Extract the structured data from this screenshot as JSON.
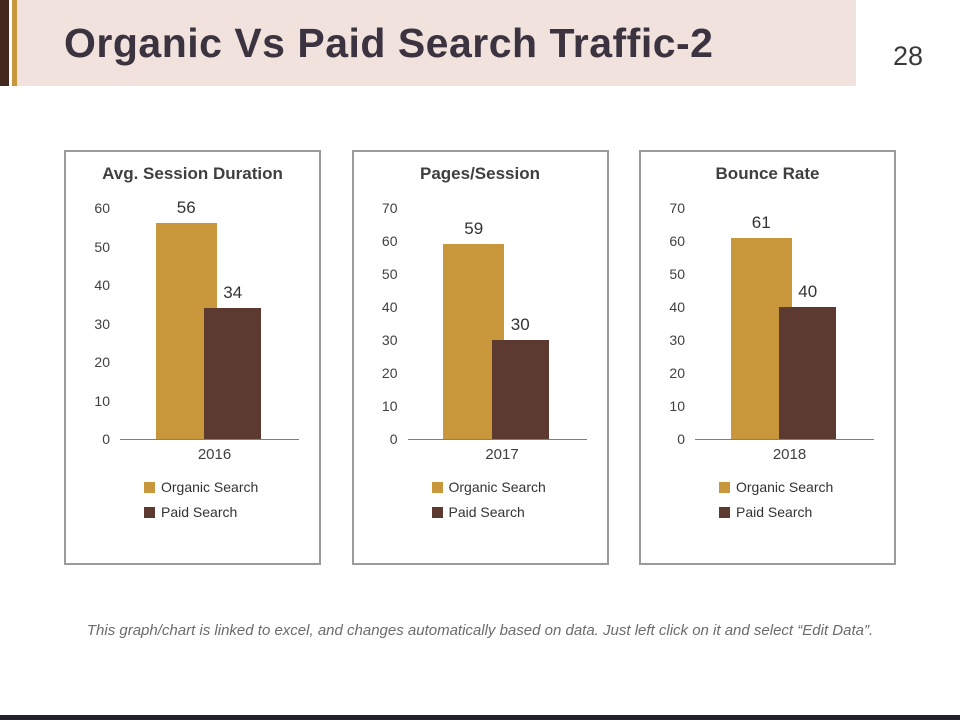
{
  "page": {
    "title": "Organic Vs Paid Search Traffic-2",
    "page_number": "28",
    "footer": "This graph/chart is linked to excel, and changes automatically based on data. Just left click on it and select “Edit Data”."
  },
  "colors": {
    "organic": "#C9973B",
    "paid": "#5C3A2F",
    "dark_stripe": "#45281D",
    "header_bg": "#F1E2DE",
    "title_text": "#3B3340",
    "bottom_bar": "#22222C"
  },
  "chart_data": [
    {
      "type": "bar",
      "title": "Avg. Session Duration",
      "categories": [
        "2016"
      ],
      "series": [
        {
          "name": "Organic Search",
          "values": [
            56
          ]
        },
        {
          "name": "Paid Search",
          "values": [
            34
          ]
        }
      ],
      "ylim": [
        0,
        60
      ],
      "ytick_step": 10,
      "grid": false,
      "legend_position": "bottom-left"
    },
    {
      "type": "bar",
      "title": "Pages/Session",
      "categories": [
        "2017"
      ],
      "series": [
        {
          "name": "Organic Search",
          "values": [
            59
          ]
        },
        {
          "name": "Paid Search",
          "values": [
            30
          ]
        }
      ],
      "ylim": [
        0,
        70
      ],
      "ytick_step": 10,
      "grid": false,
      "legend_position": "bottom-left"
    },
    {
      "type": "bar",
      "title": "Bounce Rate",
      "categories": [
        "2018"
      ],
      "series": [
        {
          "name": "Organic Search",
          "values": [
            61
          ]
        },
        {
          "name": "Paid Search",
          "values": [
            40
          ]
        }
      ],
      "ylim": [
        0,
        70
      ],
      "ytick_step": 10,
      "grid": false,
      "legend_position": "bottom-left"
    }
  ]
}
